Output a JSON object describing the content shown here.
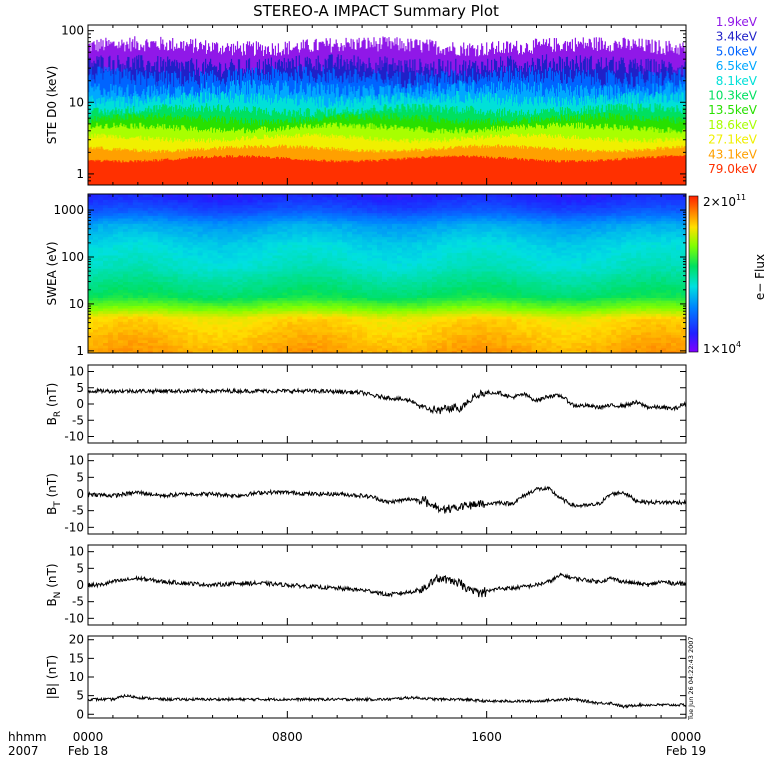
{
  "title": "STEREO-A IMPACT Summary Plot",
  "time_axis": {
    "corner_top": "hhmm",
    "corner_bottom": "2007",
    "ticks": [
      {
        "hours": 0,
        "top": "0000",
        "bottom": "Feb 18"
      },
      {
        "hours": 8,
        "top": "0800",
        "bottom": ""
      },
      {
        "hours": 16,
        "top": "1600",
        "bottom": ""
      },
      {
        "hours": 24,
        "top": "0000",
        "bottom": "Feb 19"
      }
    ],
    "range_hours": [
      0,
      24
    ],
    "minor_tick_hours": 1
  },
  "stamp": "Tue Jun 26 04:22:43 2007",
  "colorbar": {
    "top_label": "2×10",
    "top_exp": "11",
    "bottom_label": "1×10",
    "bottom_exp": "4",
    "title": "e− Flux"
  },
  "chart_data": [
    {
      "type": "line",
      "id": "ste",
      "ylabel": "STE D0 (keV)",
      "scale": "log",
      "ylim": [
        0.7,
        120
      ],
      "ytick_labels": [
        "100",
        "10",
        "1"
      ],
      "ytick_values": [
        100,
        10,
        1
      ],
      "note": "colored stacked traces, one per energy channel",
      "series": [
        {
          "name": "1.9keV",
          "color": "#9018e8",
          "level": 38,
          "spread": 1.25
        },
        {
          "name": "3.4keV",
          "color": "#2020c8",
          "level": 19,
          "spread": 1.3
        },
        {
          "name": "5.0keV",
          "color": "#0064ff",
          "level": 13,
          "spread": 1.3
        },
        {
          "name": "6.5keV",
          "color": "#00a8ff",
          "level": 9.5,
          "spread": 1.25
        },
        {
          "name": "8.1keV",
          "color": "#00e0d8",
          "level": 7.5,
          "spread": 1.2
        },
        {
          "name": "10.3keV",
          "color": "#00e060",
          "level": 5.8,
          "spread": 1.15
        },
        {
          "name": "13.5keV",
          "color": "#28e000",
          "level": 4.6,
          "spread": 1.12
        },
        {
          "name": "18.6keV",
          "color": "#a8ff00",
          "level": 3.6,
          "spread": 1.1
        },
        {
          "name": "27.1keV",
          "color": "#f0f000",
          "level": 2.7,
          "spread": 1.08
        },
        {
          "name": "43.1keV",
          "color": "#ffa000",
          "level": 2.0,
          "spread": 1.06
        },
        {
          "name": "79.0keV",
          "color": "#ff3000",
          "level": 1.5,
          "spread": 1.04
        }
      ]
    },
    {
      "type": "heatmap",
      "id": "swea",
      "ylabel": "SWEA (eV)",
      "scale": "log",
      "ylim": [
        0.9,
        2200
      ],
      "ytick_labels": [
        "1000",
        "100",
        "10",
        "1"
      ],
      "ytick_values": [
        1000,
        100,
        10,
        1
      ],
      "note": "energy-time spectrogram; high flux (red/orange) at low energy, low flux (blue) above 1000 eV",
      "energy_flux_profile": [
        {
          "energy_ev": 1,
          "flux_level": 0.86
        },
        {
          "energy_ev": 5,
          "flux_level": 0.8
        },
        {
          "energy_ev": 8,
          "flux_level": 0.68
        },
        {
          "energy_ev": 15,
          "flux_level": 0.55
        },
        {
          "energy_ev": 60,
          "flux_level": 0.45
        },
        {
          "energy_ev": 200,
          "flux_level": 0.4
        },
        {
          "energy_ev": 500,
          "flux_level": 0.33
        },
        {
          "energy_ev": 1000,
          "flux_level": 0.2
        },
        {
          "energy_ev": 2000,
          "flux_level": 0.12
        }
      ]
    },
    {
      "type": "line",
      "id": "br",
      "ylabel": "B",
      "ylabel_sub": "R",
      "yunit": "(nT)",
      "ylim": [
        -12,
        12
      ],
      "ytick_labels": [
        "10",
        "5",
        "0",
        "-5",
        "-10"
      ],
      "ytick_values": [
        10,
        5,
        0,
        -5,
        -10
      ],
      "x_hours": [
        0,
        1,
        2,
        3,
        4,
        5,
        6,
        7,
        8,
        9,
        10,
        11,
        11.5,
        12,
        12.5,
        13,
        13.5,
        14,
        14.5,
        15,
        15.5,
        16,
        16.5,
        17,
        17.5,
        18,
        18.5,
        19,
        19.5,
        20,
        20.5,
        21,
        21.5,
        22,
        22.5,
        23,
        23.5,
        24
      ],
      "values": [
        4,
        4,
        4,
        4,
        4,
        4,
        4,
        4,
        4,
        4,
        3.8,
        3.5,
        2.5,
        2,
        1.5,
        1,
        -1.5,
        -2,
        -1.5,
        -1,
        2.5,
        3.5,
        3.5,
        2,
        3,
        1,
        2.5,
        2.5,
        -0.5,
        -0.5,
        -1,
        -0.5,
        -0.5,
        0.5,
        -1,
        -1,
        -1.5,
        0
      ]
    },
    {
      "type": "line",
      "id": "bt",
      "ylabel": "B",
      "ylabel_sub": "T",
      "yunit": "(nT)",
      "ylim": [
        -12,
        12
      ],
      "ytick_labels": [
        "10",
        "5",
        "0",
        "-5",
        "-10"
      ],
      "ytick_values": [
        10,
        5,
        0,
        -5,
        -10
      ],
      "x_hours": [
        0,
        1,
        2,
        3,
        4,
        5,
        6,
        7,
        8,
        9,
        10,
        11,
        11.5,
        12,
        12.5,
        13,
        13.5,
        14,
        14.5,
        15,
        15.5,
        16,
        16.5,
        17,
        17.5,
        18,
        18.5,
        19,
        19.5,
        20,
        20.5,
        21,
        21.5,
        22,
        22.5,
        23,
        23.5,
        24
      ],
      "values": [
        0,
        -0.5,
        0.5,
        -0.5,
        0,
        0,
        -0.5,
        0.5,
        0.5,
        0,
        0,
        -0.5,
        -1,
        -2.5,
        -2,
        -1.5,
        -2,
        -4,
        -4.5,
        -4,
        -3,
        -3,
        -2.5,
        -3,
        -0.5,
        1.5,
        1.5,
        -1.5,
        -3.5,
        -3.5,
        -3,
        0,
        0.5,
        -2,
        -2.5,
        -2.5,
        -2.5,
        -2.5
      ]
    },
    {
      "type": "line",
      "id": "bn",
      "ylabel": "B",
      "ylabel_sub": "N",
      "yunit": "(nT)",
      "ylim": [
        -12,
        12
      ],
      "ytick_labels": [
        "10",
        "5",
        "0",
        "-5",
        "-10"
      ],
      "ytick_values": [
        10,
        5,
        0,
        -5,
        -10
      ],
      "x_hours": [
        0,
        0.5,
        1,
        1.5,
        2,
        3,
        4,
        5,
        6,
        7,
        8,
        9,
        10,
        11,
        11.5,
        12,
        12.5,
        13,
        13.5,
        14,
        14.5,
        15,
        15.5,
        16,
        16.5,
        17,
        17.5,
        18,
        18.5,
        19,
        19.5,
        20,
        20.5,
        21,
        21.5,
        22,
        22.5,
        23,
        23.5,
        24
      ],
      "values": [
        0,
        0,
        1,
        1.5,
        2,
        1,
        0.5,
        0,
        0.5,
        0.5,
        0,
        -0.5,
        -1,
        -1.5,
        -2,
        -3,
        -2.5,
        -2,
        -1,
        2,
        1.5,
        0,
        -2,
        -2,
        -1,
        -1,
        -0.5,
        0,
        1,
        3,
        2,
        1.5,
        1,
        2,
        1,
        0.5,
        0,
        1,
        0.5,
        0.5
      ]
    },
    {
      "type": "line",
      "id": "bmag",
      "ylabel": "|B| (nT)",
      "ylim": [
        -1,
        21
      ],
      "ytick_labels": [
        "20",
        "15",
        "10",
        "5",
        "0"
      ],
      "ytick_values": [
        20,
        15,
        10,
        5,
        0
      ],
      "x_hours": [
        0,
        1,
        1.5,
        2,
        3,
        4,
        5,
        6,
        7,
        8,
        9,
        10,
        11,
        12,
        13,
        14,
        15,
        16,
        17,
        18,
        19,
        19.5,
        20,
        20.5,
        21,
        21.5,
        22,
        23,
        24
      ],
      "values": [
        4,
        4,
        5,
        4.5,
        4,
        4,
        4,
        4,
        4,
        4,
        4,
        4,
        4,
        4,
        4.5,
        4,
        4,
        3.5,
        3.5,
        3.5,
        4,
        4,
        3.5,
        3,
        3,
        2,
        2.5,
        2.5,
        2.5
      ]
    }
  ]
}
